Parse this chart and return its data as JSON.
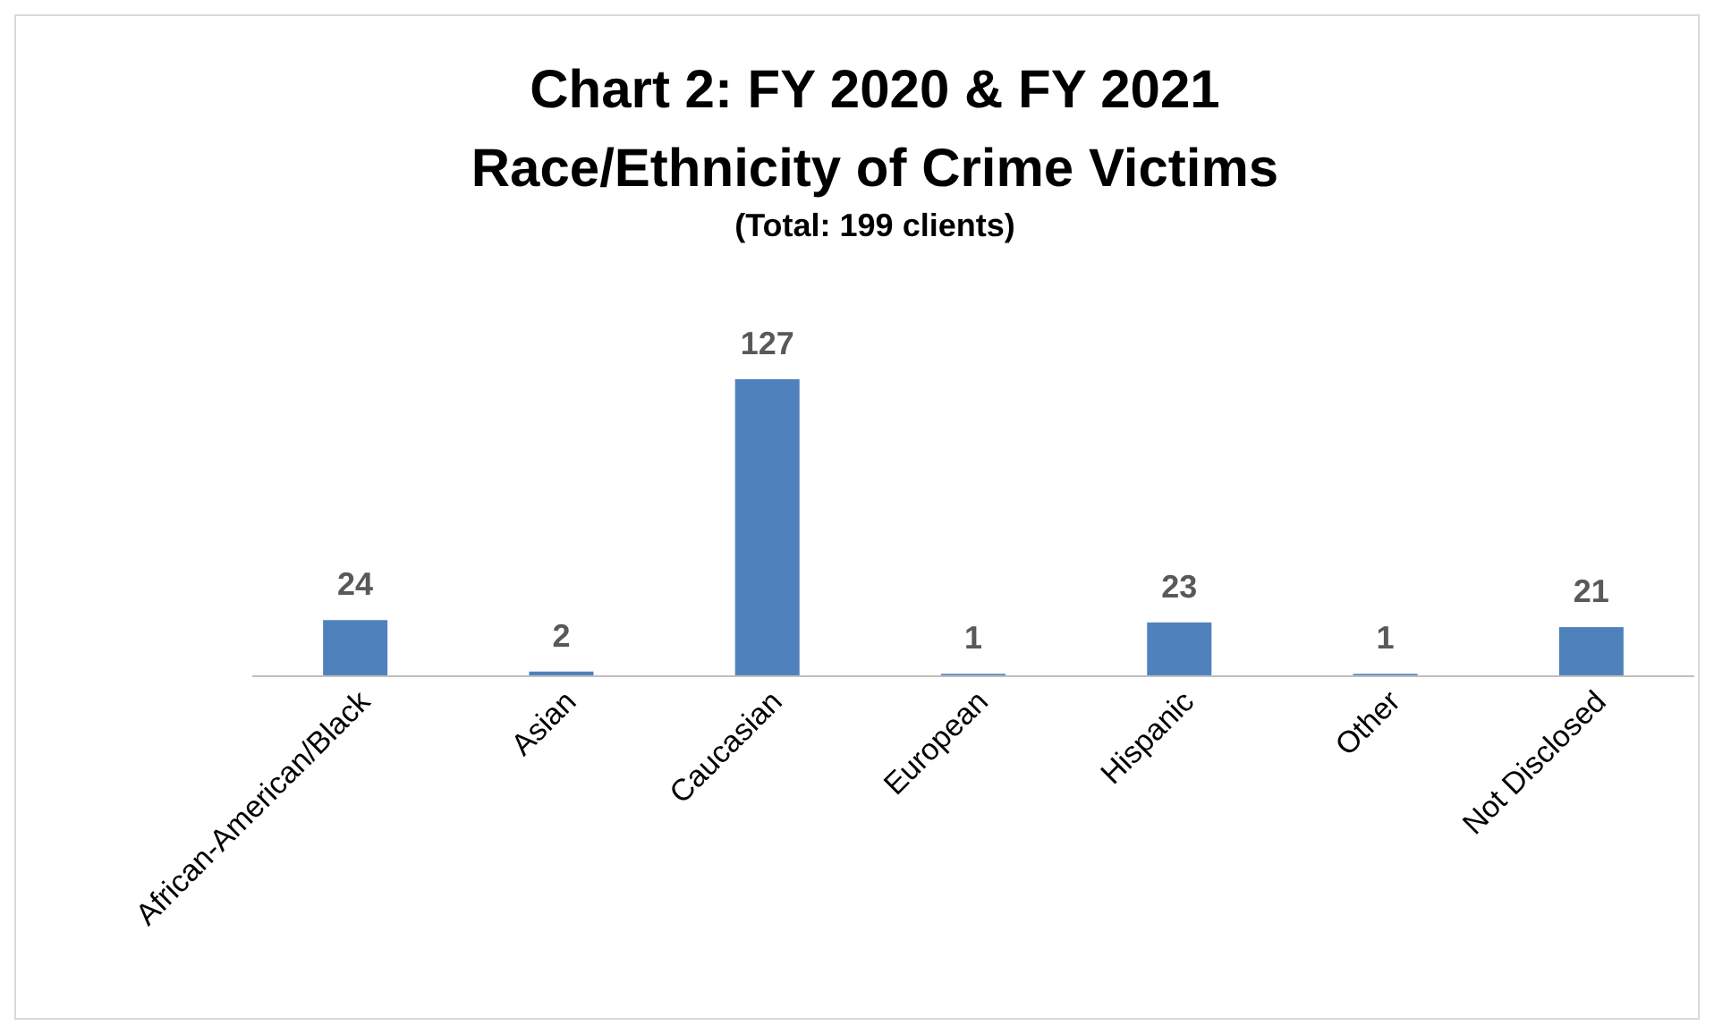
{
  "chart_data": {
    "type": "bar",
    "title": "Chart 2: FY 2020 & FY 2021\nRace/Ethnicity of Crime Victims",
    "subtitle": "(Total: 199 clients)",
    "categories": [
      "African-American/Black",
      "Asian",
      "Caucasian",
      "European",
      "Hispanic",
      "Other",
      "Not Disclosed"
    ],
    "values": [
      24,
      2,
      127,
      1,
      23,
      1,
      21
    ],
    "color": "#4f81bd",
    "data_labels": true
  }
}
